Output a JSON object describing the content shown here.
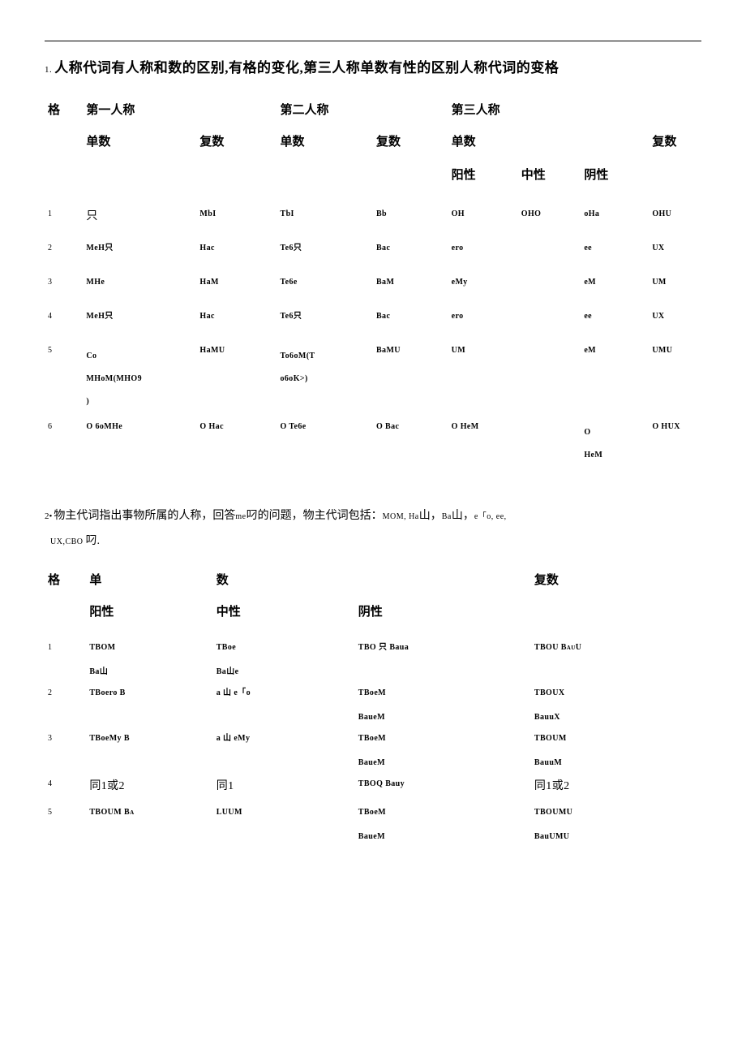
{
  "section1": {
    "number": "1.",
    "title": "人称代词有人称和数的区别,有格的变化,第三人称单数有性的区别人称代词的变格",
    "header": {
      "case": "格",
      "p1": "第一人称",
      "p2": "第二人称",
      "p3": "第三人称"
    },
    "subheader": {
      "sg": "单数",
      "pl": "复数"
    },
    "gender": {
      "m": "阳性",
      "n": "中性",
      "f": "阴性"
    },
    "rows": [
      {
        "n": "1",
        "a": "只",
        "b": "MbI",
        "c": "TbI",
        "d": "Bb",
        "e": "OH",
        "f": "OHO",
        "g": "oHa",
        "h": "OHU"
      },
      {
        "n": "2",
        "a": "MeH只",
        "b": "Hac",
        "c": "Te6只",
        "d": "Bac",
        "e": "ero",
        "f": "",
        "g": "ee",
        "h": "UX"
      },
      {
        "n": "3",
        "a": "MHe",
        "b": "HaM",
        "c": "Te6e",
        "d": "BaM",
        "e": "eMy",
        "f": "",
        "g": "eM",
        "h": "UM"
      },
      {
        "n": "4",
        "a": "MeH只",
        "b": "Hac",
        "c": "Te6只",
        "d": "Bac",
        "e": "ero",
        "f": "",
        "g": "ee",
        "h": "UX"
      },
      {
        "n": "5",
        "a": "Co",
        "a2": "MHoM(MHO9",
        "a3": ")",
        "b": "HaMU",
        "c": "To6oM(T",
        "c2": "o6oK>)",
        "d": "BaMU",
        "e": "UM",
        "f": "",
        "g": "eM",
        "h": "UMU"
      },
      {
        "n": "6",
        "a": "O 6oMHe",
        "b": "O Hac",
        "c": "O Te6e",
        "d": "O Bac",
        "e": "O HeM",
        "f": "",
        "g": "O",
        "g2": "HeM",
        "h": "O HUX"
      }
    ]
  },
  "section2": {
    "number": "2•",
    "text_before": "物主代词指出事物所属的人称，回答",
    "text_mid1": "me",
    "text_mid1b": "叼的问题，物主代词包括：",
    "text_list": "MOM, Ha",
    "text_cjk1": "山，",
    "text_list2": "Ba",
    "text_cjk2": "山，",
    "text_list3": "e「o, ee,",
    "text_line2a": "UX,CBO ",
    "text_line2b": "叼.",
    "header": {
      "case": "格",
      "sg_left": "单",
      "sg_right": "数",
      "pl": "复数"
    },
    "gender": {
      "m": "阳性",
      "n": "中性",
      "f": "阴性"
    },
    "rows": [
      {
        "n": "1",
        "a": "TBOM",
        "a2": "Ba山",
        "b": "TBoe",
        "b2": "Ba山e",
        "c": "TBO 只 Baua",
        "d": "TBOU BauU"
      },
      {
        "n": "2",
        "a": "TBoero B",
        "b": "a 山 e「o",
        "c": "TBoeM",
        "c2": "BaueM",
        "d": "TBOUX",
        "d2": "BauuX"
      },
      {
        "n": "3",
        "a": "TBoeMy B",
        "b": "a 山 eMy",
        "c": "TBoeM",
        "c2": "BaueM",
        "d": "TBOUM",
        "d2": "BauuM"
      },
      {
        "n": "4",
        "a": "同1或2",
        "b": "同1",
        "c": "TBOQ Bauy",
        "d": "同1或2"
      },
      {
        "n": "5",
        "a": "TBOUM Ba",
        "b": "LUUM",
        "c": "TBoeM",
        "c2": "BaueM",
        "d": "TBOUMU",
        "d2": "BauUMU"
      }
    ]
  }
}
